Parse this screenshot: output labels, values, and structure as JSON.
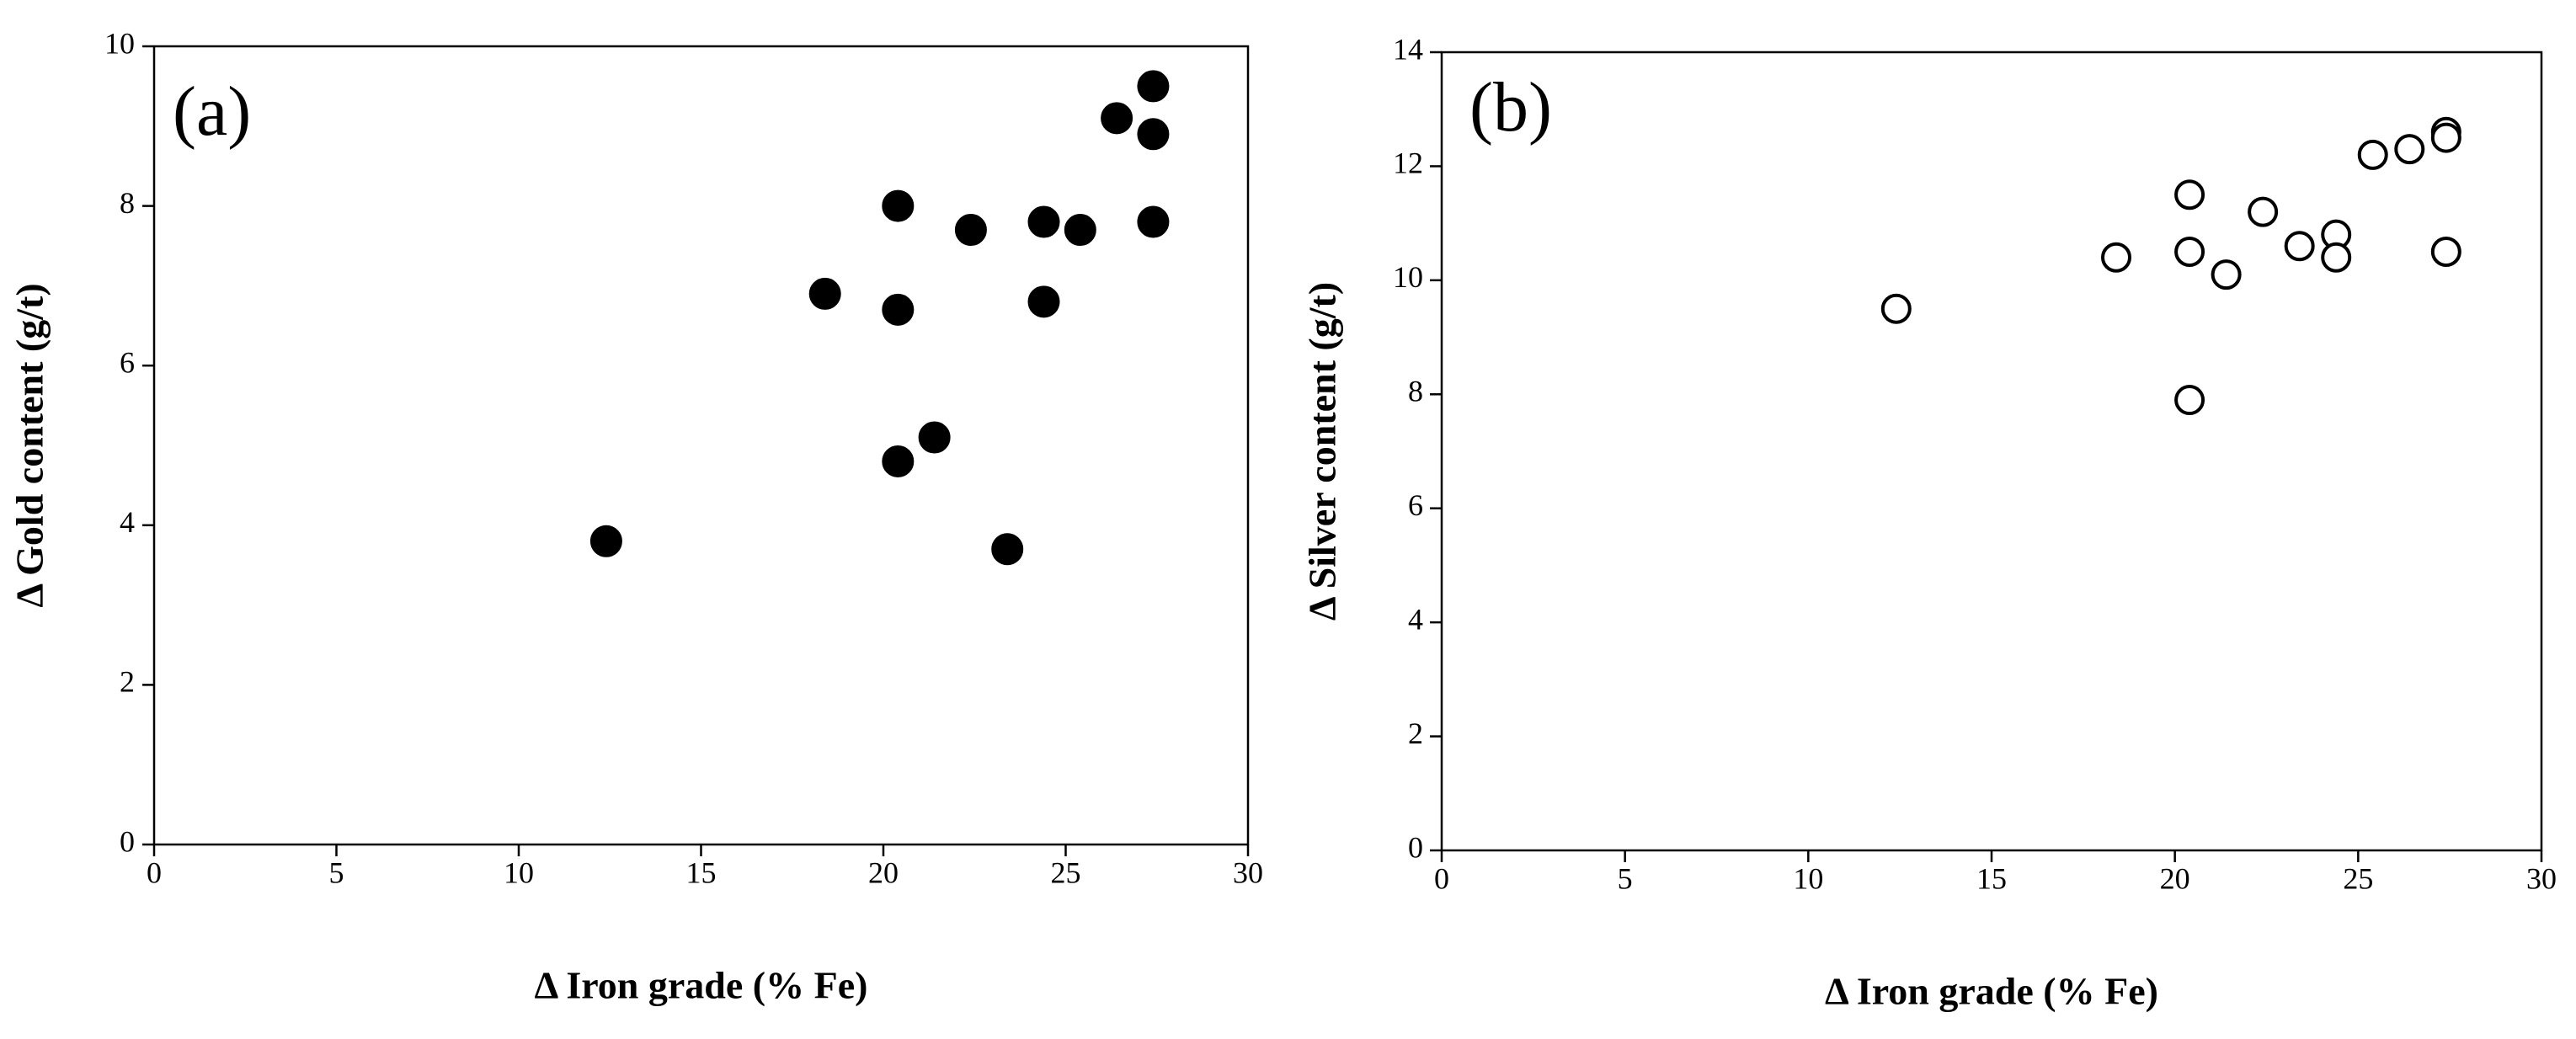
{
  "chart_data": [
    {
      "type": "scatter",
      "panel_label": "(a)",
      "xlabel": "Δ Iron grade (% Fe)",
      "ylabel": "Δ Gold content (g/t)",
      "xlim": [
        0,
        30
      ],
      "ylim": [
        0,
        10
      ],
      "xticks": [
        0,
        5,
        10,
        15,
        20,
        25,
        30
      ],
      "yticks": [
        0,
        2,
        4,
        6,
        8,
        10
      ],
      "grid": false,
      "marker": "filled-circle",
      "marker_color": "#000000",
      "points": [
        {
          "x": 12.4,
          "y": 3.8
        },
        {
          "x": 18.4,
          "y": 6.9
        },
        {
          "x": 20.4,
          "y": 8.0
        },
        {
          "x": 20.4,
          "y": 6.7
        },
        {
          "x": 20.4,
          "y": 4.8
        },
        {
          "x": 21.4,
          "y": 5.1
        },
        {
          "x": 22.4,
          "y": 7.7
        },
        {
          "x": 23.4,
          "y": 3.7
        },
        {
          "x": 24.4,
          "y": 7.8
        },
        {
          "x": 24.4,
          "y": 6.8
        },
        {
          "x": 25.4,
          "y": 7.7
        },
        {
          "x": 26.4,
          "y": 9.1
        },
        {
          "x": 27.4,
          "y": 9.5
        },
        {
          "x": 27.4,
          "y": 8.9
        },
        {
          "x": 27.4,
          "y": 7.8
        }
      ]
    },
    {
      "type": "scatter",
      "panel_label": "(b)",
      "xlabel": "Δ Iron grade (% Fe)",
      "ylabel": "Δ Silver content (g/t)",
      "xlim": [
        0,
        30
      ],
      "ylim": [
        0,
        14
      ],
      "xticks": [
        0,
        5,
        10,
        15,
        20,
        25,
        30
      ],
      "yticks": [
        0,
        2,
        4,
        6,
        8,
        10,
        12,
        14
      ],
      "grid": false,
      "marker": "open-circle",
      "marker_color": "#000000",
      "points": [
        {
          "x": 12.4,
          "y": 9.5
        },
        {
          "x": 18.4,
          "y": 10.4
        },
        {
          "x": 20.4,
          "y": 11.5
        },
        {
          "x": 20.4,
          "y": 10.5
        },
        {
          "x": 20.4,
          "y": 7.9
        },
        {
          "x": 21.4,
          "y": 10.1
        },
        {
          "x": 22.4,
          "y": 11.2
        },
        {
          "x": 23.4,
          "y": 10.6
        },
        {
          "x": 24.4,
          "y": 10.8
        },
        {
          "x": 24.4,
          "y": 10.4
        },
        {
          "x": 25.4,
          "y": 12.2
        },
        {
          "x": 26.4,
          "y": 12.3
        },
        {
          "x": 27.4,
          "y": 12.6
        },
        {
          "x": 27.4,
          "y": 12.5
        },
        {
          "x": 27.4,
          "y": 10.5
        }
      ]
    }
  ]
}
